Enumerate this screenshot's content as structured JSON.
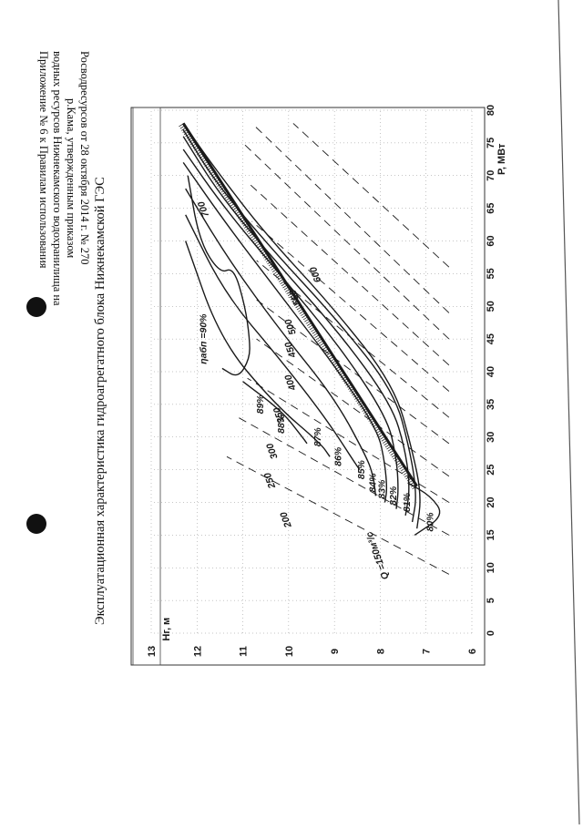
{
  "header": {
    "lines": [
      "Приложение № 6 к Правилам использования",
      "водных ресурсов Нижнекамского водохранилища на",
      "р.Кама, утвержденным приказом",
      "Росводресурсов от 28 октября 2014 г. № 270"
    ]
  },
  "title": "Эксплуатационная характеристика гидроагрегатного блока Нижнекамской ГЭС",
  "colors": {
    "ink": "#1a1a1a",
    "grid": "#8c8c8c",
    "paper": "#ffffff"
  },
  "chart_data": {
    "type": "line",
    "title": "Эксплуатационная характеристика гидроагрегатного блока Нижнекамской ГЭС",
    "xlabel": "P, МВт",
    "ylabel": "Нг, м",
    "xlim": [
      0,
      80
    ],
    "ylim": [
      6,
      13
    ],
    "xticks": [
      0,
      5,
      10,
      15,
      20,
      25,
      30,
      35,
      40,
      45,
      50,
      55,
      60,
      65,
      70,
      75,
      80
    ],
    "yticks": [
      6,
      7,
      8,
      9,
      10,
      11,
      12,
      13
    ],
    "grid": true,
    "limit_line": {
      "x": [
        22.5,
        78
      ],
      "y": [
        7.2,
        12.3
      ]
    },
    "efficiency_series": [
      {
        "label": "ηабп =90%",
        "x": [
          40.5,
          39,
          42,
          45,
          50,
          56,
          55,
          60,
          70
        ],
        "y": [
          11.45,
          11.1,
          10.85,
          10.85,
          10.95,
          11.2,
          11.5,
          11.95,
          12.2
        ]
      },
      {
        "label": "89%",
        "x": [
          38.5,
          34,
          30,
          29
        ],
        "y": [
          11.0,
          10.15,
          9.7,
          9.6
        ]
      },
      {
        "label": "88%",
        "x": [
          60,
          45,
          35,
          29,
          27
        ],
        "y": [
          12.25,
          11.5,
          10.3,
          9.3,
          9.1
        ]
      },
      {
        "label": "87%",
        "x": [
          64,
          52,
          42,
          33,
          26,
          25
        ],
        "y": [
          12.25,
          11.4,
          10.2,
          9.2,
          8.55,
          8.45
        ]
      },
      {
        "label": "86%",
        "x": [
          68,
          57,
          46,
          36,
          27,
          24,
          21
        ],
        "y": [
          12.25,
          11.3,
          10.15,
          9.0,
          8.3,
          8.15,
          8.1
        ]
      },
      {
        "label": "85%",
        "x": [
          72,
          62,
          51,
          40,
          31,
          26,
          22,
          20
        ],
        "y": [
          12.3,
          11.3,
          10.1,
          8.9,
          8.05,
          7.9,
          7.85,
          7.9
        ]
      },
      {
        "label": "84%",
        "x": [
          74,
          65,
          55,
          44,
          33,
          27,
          22,
          19
        ],
        "y": [
          12.3,
          11.4,
          10.2,
          8.9,
          7.85,
          7.65,
          7.6,
          7.65
        ]
      },
      {
        "label": "83%",
        "x": [
          76,
          67,
          57,
          46,
          35,
          28,
          22,
          18
        ],
        "y": [
          12.3,
          11.5,
          10.3,
          8.9,
          7.75,
          7.45,
          7.35,
          7.45
        ]
      },
      {
        "label": "82%",
        "x": [
          77,
          69,
          59,
          48,
          37,
          28,
          21,
          17
        ],
        "y": [
          12.3,
          11.6,
          10.4,
          8.95,
          7.7,
          7.35,
          7.2,
          7.3
        ]
      },
      {
        "label": "81%",
        "x": [
          78,
          71,
          61,
          50,
          38,
          28,
          21,
          16
        ],
        "y": [
          12.3,
          11.6,
          10.5,
          9.05,
          7.7,
          7.3,
          7.1,
          7.2
        ]
      },
      {
        "label": "80%",
        "x": [
          23,
          21,
          18,
          15
        ],
        "y": [
          7.4,
          6.9,
          6.6,
          7.25
        ]
      }
    ],
    "flow_series": [
      {
        "label": "Q =150м³/с",
        "x": [
          9,
          27
        ],
        "y": [
          6.5,
          11.35
        ]
      },
      {
        "label": "200",
        "x": [
          15,
          33
        ],
        "y": [
          6.5,
          11.1
        ]
      },
      {
        "label": "250",
        "x": [
          20,
          39
        ],
        "y": [
          6.5,
          10.9
        ]
      },
      {
        "label": "300",
        "x": [
          24,
          45
        ],
        "y": [
          6.5,
          10.7
        ]
      },
      {
        "label": "350",
        "x": [
          29,
          51
        ],
        "y": [
          6.5,
          10.7
        ]
      },
      {
        "label": "400",
        "x": [
          33,
          57
        ],
        "y": [
          6.5,
          10.7
        ]
      },
      {
        "label": "450",
        "x": [
          37,
          63
        ],
        "y": [
          6.5,
          10.8
        ]
      },
      {
        "label": "500",
        "x": [
          41,
          69
        ],
        "y": [
          6.5,
          10.9
        ]
      },
      {
        "label": "550",
        "x": [
          45,
          75
        ],
        "y": [
          6.5,
          11.0
        ]
      },
      {
        "label": "600",
        "x": [
          49,
          78
        ],
        "y": [
          6.5,
          10.8
        ]
      },
      {
        "label": "700",
        "x": [
          56,
          78
        ],
        "y": [
          6.5,
          9.9
        ]
      }
    ]
  }
}
